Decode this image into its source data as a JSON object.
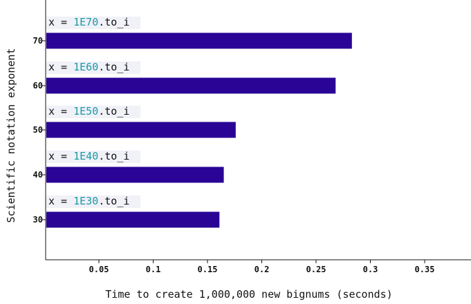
{
  "chart_data": {
    "type": "bar",
    "orientation": "horizontal",
    "xlabel": "Time to create 1,000,000 new bignums (seconds)",
    "ylabel": "Scientific notation exponent",
    "xlim": [
      0,
      0.37
    ],
    "xticks": [
      "0.05",
      "0.1",
      "0.15",
      "0.2",
      "0.25",
      "0.3",
      "0.35"
    ],
    "bar_color": "#2a0595",
    "label_highlight_color": "#1a9aa6",
    "categories": [
      "70",
      "60",
      "50",
      "40",
      "30"
    ],
    "values": [
      0.283,
      0.268,
      0.176,
      0.165,
      0.161
    ],
    "annotations": [
      {
        "prefix": "x = ",
        "literal": "1E70",
        "suffix": ".to_i"
      },
      {
        "prefix": "x = ",
        "literal": "1E60",
        "suffix": ".to_i"
      },
      {
        "prefix": "x = ",
        "literal": "1E50",
        "suffix": ".to_i"
      },
      {
        "prefix": "x = ",
        "literal": "1E40",
        "suffix": ".to_i"
      },
      {
        "prefix": "x = ",
        "literal": "1E30",
        "suffix": ".to_i"
      }
    ]
  }
}
